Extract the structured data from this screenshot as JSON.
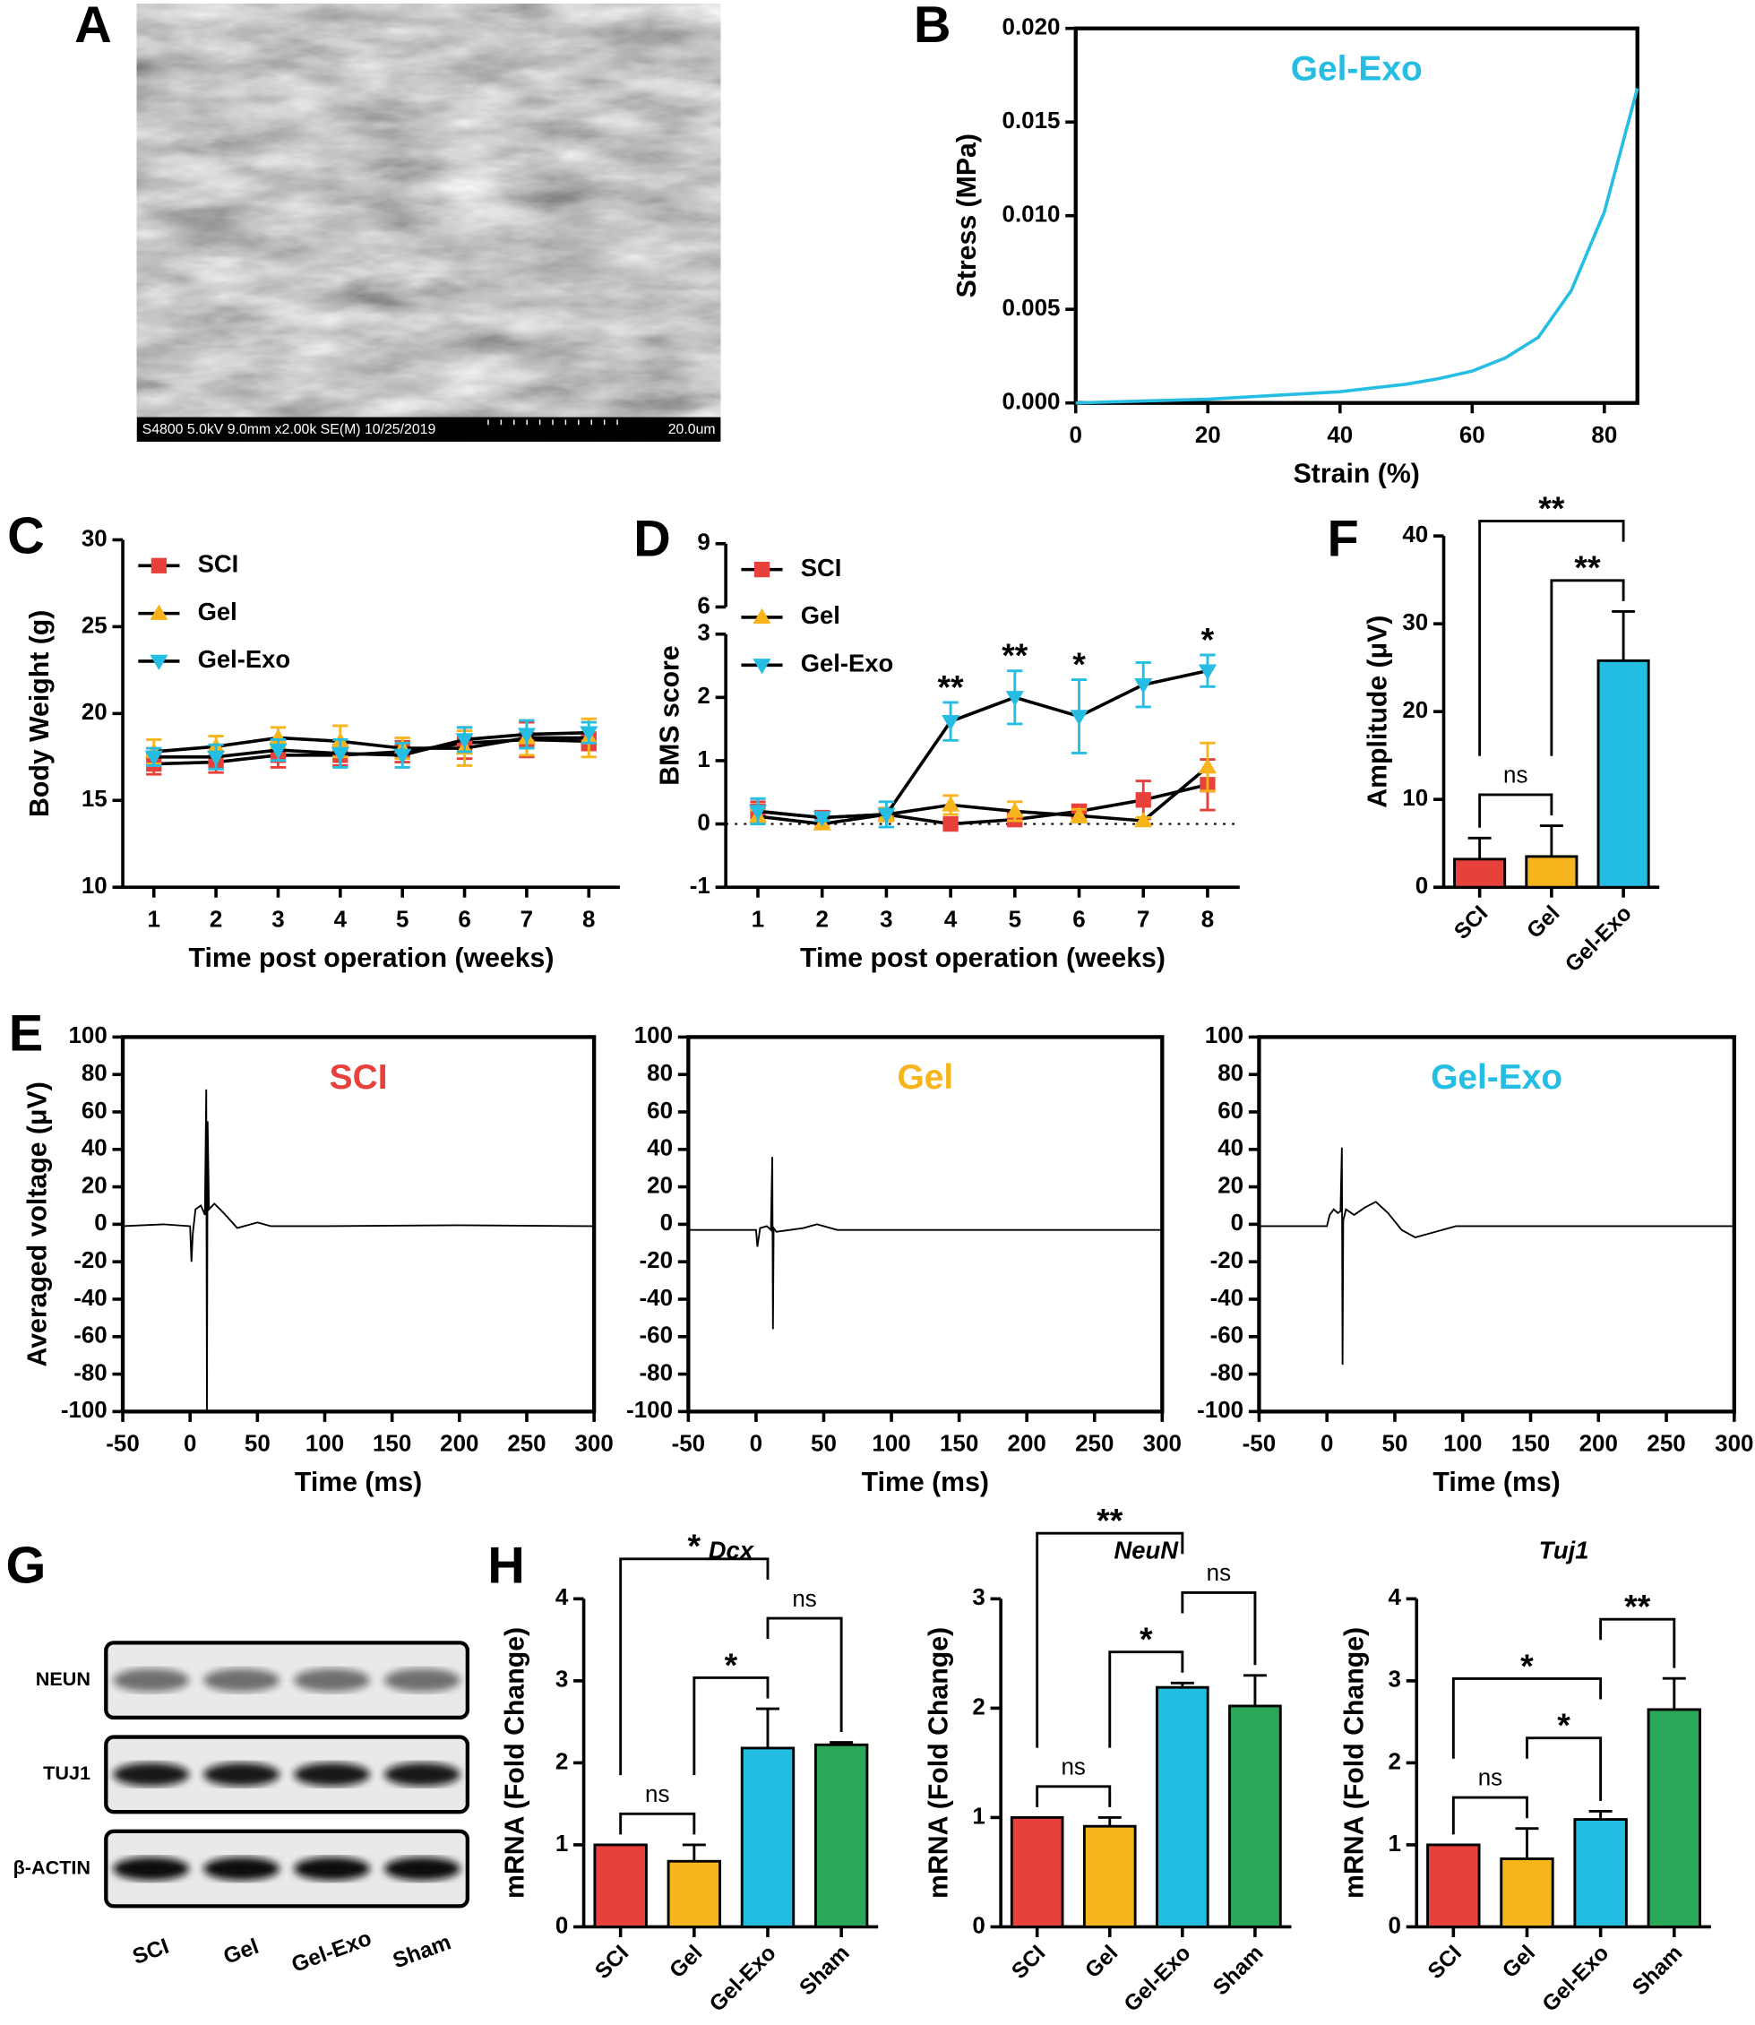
{
  "chart_data": [
    {
      "type": "image",
      "panel": "A",
      "caption": "S4800 5.0kV 9.0mm x2.00k SE(M) 10/25/2019",
      "scale_label": "20.0um"
    },
    {
      "type": "line",
      "panel": "B",
      "xlabel": "Strain (%)",
      "ylabel": "Stress (MPa)",
      "box": true,
      "legend": "top-center",
      "xlim": [
        0,
        85
      ],
      "ylim": [
        0,
        0.02
      ],
      "xticks": [
        0,
        20,
        40,
        60,
        80
      ],
      "yticks": [
        {
          "value": 0,
          "label": "0.000"
        },
        {
          "value": 0.005,
          "label": "0.005"
        },
        {
          "value": 0.01,
          "label": "0.010"
        },
        {
          "value": 0.015,
          "label": "0.015"
        },
        {
          "value": 0.02,
          "label": "0.020"
        }
      ],
      "series": [
        {
          "name": "Gel-Exo",
          "color": "#26bde2",
          "x": [
            0,
            10,
            20,
            30,
            40,
            50,
            55,
            60,
            65,
            70,
            75,
            80,
            85
          ],
          "values": [
            0,
            0.0001,
            0.0002,
            0.0004,
            0.0006,
            0.001,
            0.0013,
            0.0017,
            0.0024,
            0.0035,
            0.006,
            0.0102,
            0.0168
          ]
        }
      ]
    },
    {
      "type": "line",
      "panel": "C",
      "xlabel": "Time post operation (weeks)",
      "ylabel": "Body Weight (g)",
      "legend": "upper left",
      "x": [
        1,
        2,
        3,
        4,
        5,
        6,
        7,
        8
      ],
      "xlim": [
        0.5,
        8.5
      ],
      "ylim": [
        10,
        30
      ],
      "xticks": [
        1,
        2,
        3,
        4,
        5,
        6,
        7,
        8
      ],
      "yticks": [
        10,
        15,
        20,
        25,
        30
      ],
      "series": [
        {
          "name": "SCI",
          "color": "#e8403a",
          "marker": "square",
          "values": [
            17.1,
            17.2,
            17.6,
            17.6,
            17.8,
            18.3,
            18.5,
            18.4
          ],
          "errors": [
            0.6,
            0.6,
            0.7,
            0.6,
            0.6,
            0.9,
            1.0,
            0.5
          ]
        },
        {
          "name": "Gel",
          "color": "#f8b41c",
          "marker": "triangle-up",
          "values": [
            17.8,
            18.1,
            18.6,
            18.4,
            18.0,
            18.0,
            18.6,
            18.6
          ],
          "errors": [
            0.7,
            0.6,
            0.6,
            0.9,
            0.6,
            1.0,
            1.0,
            1.1
          ]
        },
        {
          "name": "Gel-Exo",
          "color": "#26bde2",
          "marker": "triangle-down",
          "values": [
            17.5,
            17.5,
            17.9,
            17.7,
            17.6,
            18.5,
            18.8,
            18.9
          ],
          "errors": [
            0.5,
            0.7,
            0.6,
            0.8,
            0.7,
            0.7,
            0.8,
            0.6
          ]
        }
      ]
    },
    {
      "type": "line",
      "panel": "D",
      "xlabel": "Time post operation (weeks)",
      "ylabel": "BMS score",
      "legend": "upper left",
      "x": [
        1,
        2,
        3,
        4,
        5,
        6,
        7,
        8
      ],
      "xlim": [
        0.5,
        8.5
      ],
      "ylim": [
        -1,
        9
      ],
      "ybreak": [
        3,
        6
      ],
      "yticks": [
        -1,
        0,
        1,
        2,
        3,
        6,
        9
      ],
      "xticks": [
        1,
        2,
        3,
        4,
        5,
        6,
        7,
        8
      ],
      "series": [
        {
          "name": "SCI",
          "color": "#e8403a",
          "marker": "square",
          "values": [
            0.2,
            0.1,
            0.15,
            0.0,
            0.07,
            0.2,
            0.38,
            0.62
          ],
          "errors": [
            0.15,
            0.05,
            0.1,
            0.0,
            0.1,
            0.1,
            0.3,
            0.4
          ]
        },
        {
          "name": "Gel",
          "color": "#f8b41c",
          "marker": "triangle-up",
          "values": [
            0.12,
            0.0,
            0.15,
            0.3,
            0.2,
            0.13,
            0.05,
            0.9
          ],
          "errors": [
            0.1,
            0.05,
            0.1,
            0.15,
            0.15,
            0.1,
            0.05,
            0.38
          ]
        },
        {
          "name": "Gel-Exo",
          "color": "#26bde2",
          "marker": "triangle-down",
          "values": [
            0.2,
            0.1,
            0.15,
            1.62,
            2.0,
            1.7,
            2.2,
            2.42
          ],
          "errors": [
            0.2,
            0.05,
            0.2,
            0.3,
            0.42,
            0.58,
            0.35,
            0.25
          ]
        }
      ],
      "annotations": [
        {
          "x": 4,
          "label": "**"
        },
        {
          "x": 5,
          "label": "**"
        },
        {
          "x": 6,
          "label": "*"
        },
        {
          "x": 8,
          "label": "*"
        }
      ]
    },
    {
      "type": "bar",
      "panel": "F",
      "ylabel": "Amplitude (μV)",
      "categories": [
        "SCI",
        "Gel",
        "Gel-Exo"
      ],
      "colors": [
        "#e8403a",
        "#f8b41c",
        "#22bde0"
      ],
      "values": [
        3.2,
        3.5,
        25.8
      ],
      "errors": [
        2.4,
        3.5,
        5.6
      ],
      "ylim": [
        0,
        40
      ],
      "yticks": [
        0,
        10,
        20,
        30,
        40
      ],
      "comparisons": [
        {
          "from": 0,
          "to": 1,
          "label": "ns"
        },
        {
          "from": 1,
          "to": 2,
          "label": "**"
        },
        {
          "from": 0,
          "to": 2,
          "label": "**"
        }
      ]
    },
    {
      "type": "line",
      "panel": "E",
      "ylabel": "Averaged voltage (μV)",
      "xlabel": "Time (ms)",
      "box": true,
      "legend": "top-center",
      "xlim": [
        -50,
        300
      ],
      "ylim": [
        -100,
        100
      ],
      "xticks": [
        -50,
        0,
        50,
        100,
        150,
        200,
        250,
        300
      ],
      "yticks": [
        100,
        80,
        60,
        40,
        20,
        0,
        -20,
        -40,
        -60,
        -80,
        -100
      ],
      "series": [
        {
          "name": "SCI",
          "color": "#e8403a",
          "line_color": "#000000",
          "x": [
            -50,
            -20,
            0,
            1,
            2,
            4,
            8,
            11,
            12,
            12.5,
            13,
            14,
            18,
            25,
            35,
            50,
            60,
            100,
            200,
            300
          ],
          "values": [
            -1,
            0,
            -1,
            -20,
            -5,
            8,
            10,
            5,
            72,
            -100,
            55,
            8,
            11,
            6,
            -2,
            1,
            -1,
            -1,
            -0.5,
            -1
          ]
        }
      ]
    },
    {
      "type": "line",
      "xlabel": "Time (ms)",
      "box": true,
      "legend": "top-center",
      "xlim": [
        -50,
        300
      ],
      "ylim": [
        -100,
        100
      ],
      "xticks": [
        -50,
        0,
        50,
        100,
        150,
        200,
        250,
        300
      ],
      "yticks": [
        100,
        80,
        60,
        40,
        20,
        0,
        -20,
        -40,
        -60,
        -80,
        -100
      ],
      "series": [
        {
          "name": "Gel",
          "color": "#f8b41c",
          "line_color": "#000000",
          "x": [
            -50,
            0,
            1,
            3,
            8,
            11,
            12,
            12.5,
            13,
            15,
            25,
            35,
            45,
            60,
            100,
            200,
            300
          ],
          "values": [
            -3,
            -3,
            -12,
            -2,
            -1,
            -3,
            36,
            -56,
            -2,
            -4,
            -3,
            -2,
            0,
            -3,
            -3,
            -3,
            -3
          ]
        }
      ]
    },
    {
      "type": "line",
      "xlabel": "Time (ms)",
      "box": true,
      "legend": "top-center",
      "xlim": [
        -50,
        300
      ],
      "ylim": [
        -100,
        100
      ],
      "xticks": [
        -50,
        0,
        50,
        100,
        150,
        200,
        250,
        300
      ],
      "yticks": [
        100,
        80,
        60,
        40,
        20,
        0,
        -20,
        -40,
        -60,
        -80,
        -100
      ],
      "series": [
        {
          "name": "Gel-Exo",
          "color": "#26bde2",
          "line_color": "#000000",
          "x": [
            -50,
            0,
            2,
            5,
            8,
            10,
            11,
            11.5,
            12,
            14,
            20,
            28,
            36,
            45,
            55,
            65,
            80,
            95,
            100,
            200,
            300
          ],
          "values": [
            -1,
            -1,
            5,
            8,
            6,
            7,
            41,
            -75,
            2,
            8,
            5,
            9,
            12,
            6,
            -3,
            -7,
            -4,
            -1,
            -1,
            -1,
            -1
          ]
        }
      ]
    },
    {
      "type": "blot",
      "panel": "G",
      "rows": [
        "NEUN",
        "TUJ1",
        "β-ACTIN"
      ],
      "lanes": [
        "SCI",
        "Gel",
        "Gel-Exo",
        "Sham"
      ]
    },
    {
      "type": "bar",
      "panel": "H",
      "title": "Dcx",
      "ylabel": "mRNA (Fold Change)",
      "categories": [
        "SCI",
        "Gel",
        "Gel-Exo",
        "Sham"
      ],
      "colors": [
        "#e8403a",
        "#f8b41c",
        "#22bde0",
        "#2aa757"
      ],
      "values": [
        1,
        0.8,
        2.18,
        2.22
      ],
      "errors": [
        0,
        0.2,
        0.48,
        0.03
      ],
      "ylim": [
        0,
        4
      ],
      "yticks": [
        0,
        1,
        2,
        3,
        4
      ],
      "comparisons": [
        {
          "from": 0,
          "to": 1,
          "label": "ns"
        },
        {
          "from": 1,
          "to": 2,
          "label": "*"
        },
        {
          "from": 2,
          "to": 3,
          "label": "ns"
        },
        {
          "from": 0,
          "to": 2,
          "label": "*"
        }
      ]
    },
    {
      "type": "bar",
      "title": "NeuN",
      "ylabel": "mRNA (Fold Change)",
      "categories": [
        "SCI",
        "Gel",
        "Gel-Exo",
        "Sham"
      ],
      "colors": [
        "#e8403a",
        "#f8b41c",
        "#22bde0",
        "#2aa757"
      ],
      "values": [
        1,
        0.92,
        2.19,
        2.02
      ],
      "errors": [
        0,
        0.08,
        0.04,
        0.28
      ],
      "ylim": [
        0,
        3
      ],
      "yticks": [
        0,
        1,
        2,
        3
      ],
      "comparisons": [
        {
          "from": 0,
          "to": 1,
          "label": "ns"
        },
        {
          "from": 1,
          "to": 2,
          "label": "*"
        },
        {
          "from": 2,
          "to": 3,
          "label": "ns"
        },
        {
          "from": 0,
          "to": 2,
          "label": "**"
        }
      ]
    },
    {
      "type": "bar",
      "title": "Tuj1",
      "ylabel": "mRNA (Fold Change)",
      "categories": [
        "SCI",
        "Gel",
        "Gel-Exo",
        "Sham"
      ],
      "colors": [
        "#e8403a",
        "#f8b41c",
        "#22bde0",
        "#2aa757"
      ],
      "values": [
        1,
        0.83,
        1.31,
        2.65
      ],
      "errors": [
        0,
        0.37,
        0.1,
        0.38
      ],
      "ylim": [
        0,
        4
      ],
      "yticks": [
        0,
        1,
        2,
        3,
        4
      ],
      "comparisons": [
        {
          "from": 0,
          "to": 1,
          "label": "ns"
        },
        {
          "from": 1,
          "to": 2,
          "label": "*"
        },
        {
          "from": 0,
          "to": 2,
          "label": "*"
        },
        {
          "from": 2,
          "to": 3,
          "label": "**"
        }
      ]
    }
  ]
}
